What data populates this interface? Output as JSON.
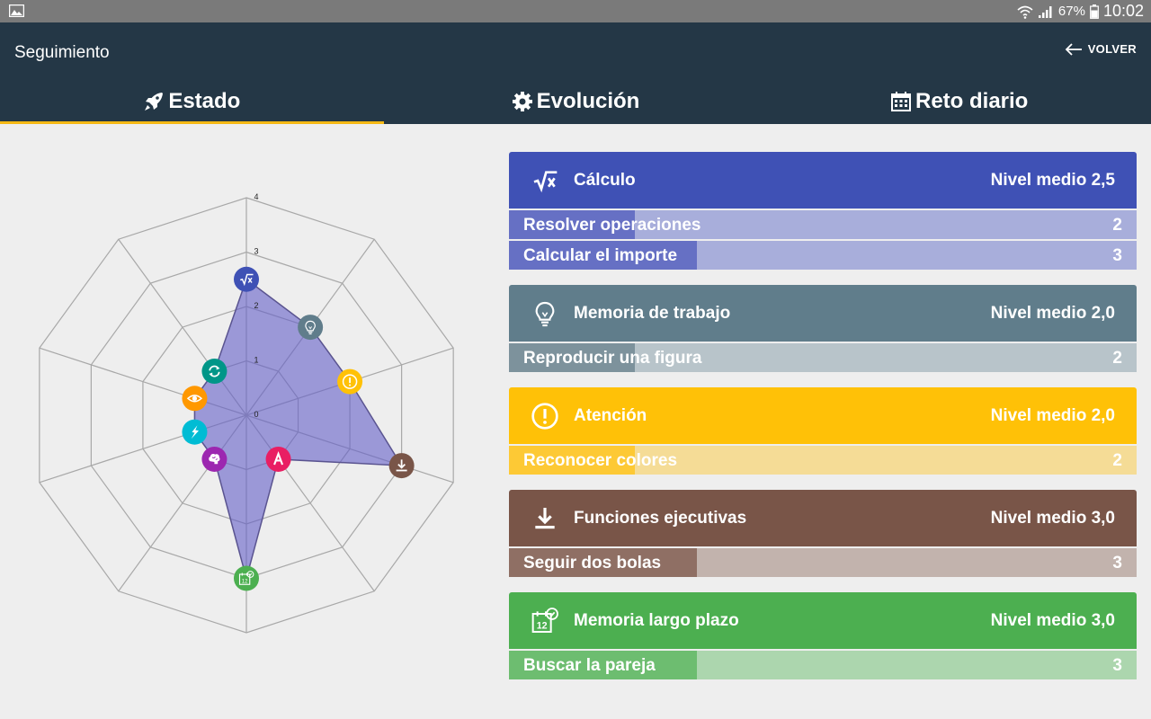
{
  "status": {
    "battery": "67%",
    "time": "10:02"
  },
  "appbar": {
    "title": "Seguimiento",
    "back_label": "VOLVER"
  },
  "tabs": [
    {
      "label": "Estado",
      "icon": "rocket-icon",
      "active": true
    },
    {
      "label": "Evolución",
      "icon": "gear-icon",
      "active": false
    },
    {
      "label": "Reto diario",
      "icon": "calendar-icon",
      "active": false
    }
  ],
  "chart_data": {
    "type": "radar",
    "scale_labels": [
      "0",
      "1",
      "2",
      "3",
      "4"
    ],
    "max": 4,
    "axes": [
      {
        "icon": "sqrt-icon",
        "color": "#3f51b5",
        "value": 2.5
      },
      {
        "icon": "lightbulb-icon",
        "color": "#607d8b",
        "value": 2.0
      },
      {
        "icon": "exclamation-icon",
        "color": "#ffc107",
        "value": 2.0
      },
      {
        "icon": "download-icon",
        "color": "#795548",
        "value": 3.0
      },
      {
        "icon": "letter-a-icon",
        "color": "#e91e63",
        "value": 1.0
      },
      {
        "icon": "calendar-12-icon",
        "color": "#4caf50",
        "value": 3.0
      },
      {
        "icon": "brain-icon",
        "color": "#9c27b0",
        "value": 1.0
      },
      {
        "icon": "lightning-icon",
        "color": "#00bcd4",
        "value": 1.0
      },
      {
        "icon": "eye-icon",
        "color": "#ff9800",
        "value": 1.0
      },
      {
        "icon": "refresh-icon",
        "color": "#009688",
        "value": 1.0
      }
    ]
  },
  "cards": [
    {
      "name": "Cálculo",
      "level": "Nivel medio 2,5",
      "icon": "sqrt-icon",
      "color": "#3f51b5",
      "light": "#a8aedb",
      "dark": "#6670c4",
      "rows": [
        {
          "label": "Resolver operaciones",
          "value": "2",
          "fraction": 0.2
        },
        {
          "label": "Calcular el importe",
          "value": "3",
          "fraction": 0.3
        }
      ]
    },
    {
      "name": "Memoria de trabajo",
      "level": "Nivel medio 2,0",
      "icon": "lightbulb-icon",
      "color": "#607d8b",
      "light": "#b8c4ca",
      "dark": "#7d929c",
      "rows": [
        {
          "label": "Reproducir una figura",
          "value": "2",
          "fraction": 0.2
        }
      ]
    },
    {
      "name": "Atención",
      "level": "Nivel medio 2,0",
      "icon": "exclamation-icon",
      "color": "#ffc107",
      "light": "#f5dc96",
      "dark": "#fdc935",
      "rows": [
        {
          "label": "Reconocer colores",
          "value": "2",
          "fraction": 0.2
        }
      ]
    },
    {
      "name": "Funciones ejecutivas",
      "level": "Nivel medio 3,0",
      "icon": "download-icon",
      "color": "#795548",
      "light": "#c2b3ad",
      "dark": "#8f6f64",
      "rows": [
        {
          "label": "Seguir dos bolas",
          "value": "3",
          "fraction": 0.3
        }
      ]
    },
    {
      "name": "Memoria largo plazo",
      "level": "Nivel medio 3,0",
      "icon": "calendar-12-icon",
      "color": "#4caf50",
      "light": "#acd6ae",
      "dark": "#6dbd70",
      "rows": [
        {
          "label": "Buscar la pareja",
          "value": "3",
          "fraction": 0.3
        }
      ]
    }
  ]
}
